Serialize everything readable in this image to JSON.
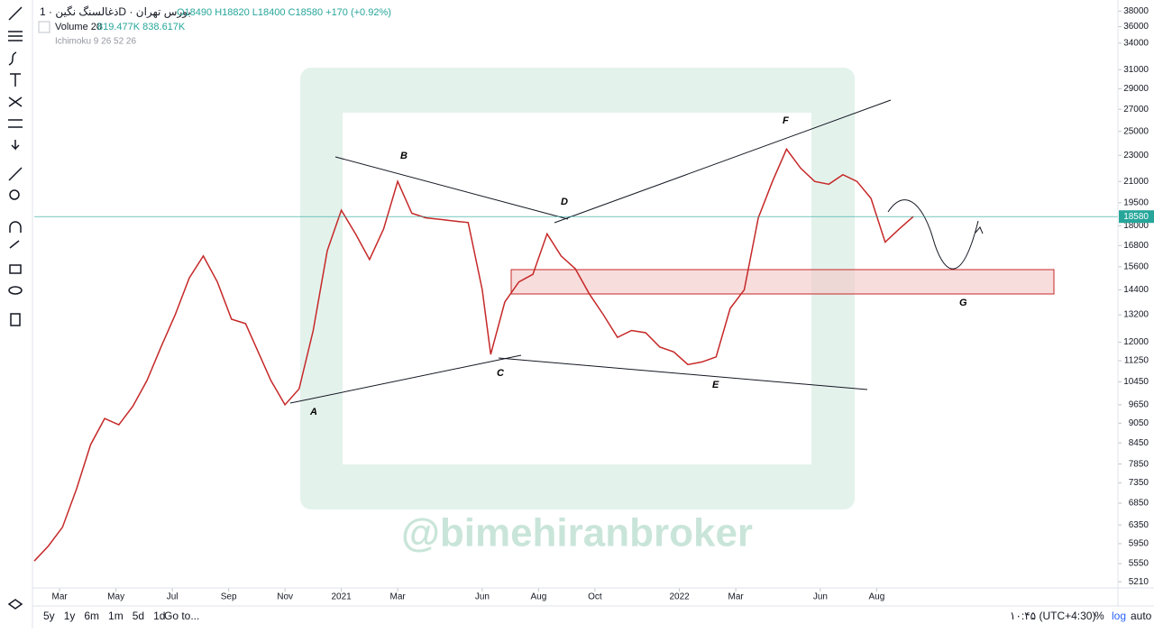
{
  "header": {
    "symbol": "ذغالسنگ نگین · 1D · بورس تهران",
    "ohlc": "O18490 H18820 L18400 C18580 +170 (+0.92%)",
    "volume": "Volume 20",
    "volume_values": "819.477K 838.617K",
    "indicator": "Ichimoku 9 26 52 26"
  },
  "toolbar": {
    "ranges": [
      "5y",
      "1y",
      "6m",
      "1m",
      "5d",
      "1d"
    ],
    "goto": "Go to...",
    "time": "۱۰:۴۵ (UTC+4:30)",
    "percent": "%",
    "log": "log",
    "auto": "auto"
  },
  "watermark": "@bimehiranbroker",
  "chart_data": {
    "type": "line",
    "log_scale": true,
    "xlim": [
      1.1,
      39.5
    ],
    "xticks": [
      {
        "value": 2,
        "label": "Mar"
      },
      {
        "value": 4,
        "label": "May"
      },
      {
        "value": 6,
        "label": "Jul"
      },
      {
        "value": 8,
        "label": "Sep"
      },
      {
        "value": 10,
        "label": "Nov"
      },
      {
        "value": 12,
        "label": "2021"
      },
      {
        "value": 14,
        "label": "Mar"
      },
      {
        "value": 17,
        "label": "Jun"
      },
      {
        "value": 19,
        "label": "Aug"
      },
      {
        "value": 21,
        "label": "Oct"
      },
      {
        "value": 24,
        "label": "2022"
      },
      {
        "value": 26,
        "label": "Mar"
      },
      {
        "value": 29,
        "label": "Jun"
      },
      {
        "value": 31,
        "label": "Aug"
      }
    ],
    "ylim": [
      5100,
      39500
    ],
    "yticks": [
      38000,
      36000,
      34000,
      31000,
      29000,
      27000,
      25000,
      23000,
      21000,
      19500,
      18000,
      16800,
      15600,
      14400,
      13200,
      12000,
      11250,
      10450,
      9650,
      9050,
      8450,
      7850,
      7350,
      6850,
      6350,
      5950,
      5550,
      5210
    ],
    "last_price": 18580,
    "annotations": [
      "A",
      "B",
      "C",
      "D",
      "E",
      "F",
      "G"
    ],
    "series": [
      {
        "name": "ذغالسنگ نگین",
        "color": "#c62828",
        "x": [
          1.1,
          1.6,
          2.1,
          2.6,
          3.1,
          3.6,
          4.1,
          4.6,
          5.1,
          5.6,
          6.1,
          6.6,
          7.1,
          7.6,
          8.1,
          8.6,
          9.5,
          10,
          10.5,
          11,
          11.5,
          12,
          12.5,
          13,
          13.5,
          14,
          14.5,
          15,
          15.5,
          16,
          16.5,
          17,
          17.3,
          17.8,
          18.3,
          18.8,
          19.3,
          19.8,
          20.3,
          20.8,
          21.3,
          21.8,
          22.3,
          22.8,
          23.3,
          23.8,
          24.3,
          24.8,
          25.3,
          25.8,
          26.3,
          26.8,
          27.3,
          27.8,
          28.3,
          28.8,
          29.3,
          29.8,
          30.3,
          30.8,
          31.3,
          31.8,
          32.3
        ],
        "values": [
          5600,
          5900,
          6300,
          7200,
          8400,
          9200,
          9000,
          9600,
          10500,
          11800,
          13200,
          15000,
          16200,
          14800,
          13000,
          12800,
          10500,
          9650,
          10200,
          12500,
          16500,
          19000,
          17500,
          16000,
          17800,
          21000,
          18800,
          18500,
          18400,
          18300,
          18200,
          14400,
          11500,
          13800,
          14800,
          15200,
          17500,
          16200,
          15500,
          14200,
          13200,
          12200,
          12500,
          12400,
          11800,
          11600,
          11100,
          11200,
          11400,
          13500,
          14400,
          18500,
          21000,
          23500,
          22000,
          21000,
          20800,
          21500,
          21000,
          19800,
          17000,
          17800,
          18580
        ]
      }
    ]
  }
}
